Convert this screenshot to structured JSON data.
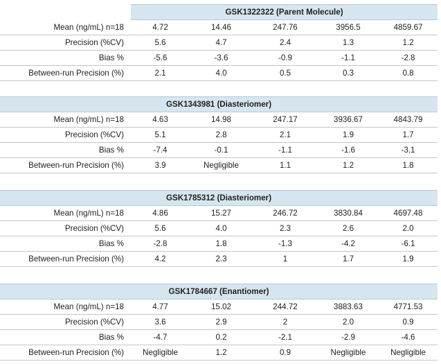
{
  "columns_labels": [
    "Mean (ng/mL) n=18",
    "Precision (%CV)",
    "Bias %",
    "Between-run Precision (%)"
  ],
  "sections": [
    {
      "title": "GSK1322322 (Parent Molecule)",
      "rows": [
        {
          "label": "Mean (ng/mL) n=18",
          "values": [
            "4.72",
            "14.46",
            "247.76",
            "3956.5",
            "4859.67"
          ]
        },
        {
          "label": "Precision (%CV)",
          "values": [
            "5.6",
            "4.7",
            "2.4",
            "1.3",
            "1.2"
          ]
        },
        {
          "label": "Bias %",
          "values": [
            "-5.6",
            "-3.6",
            "-0.9",
            "-1.1",
            "-2.8"
          ]
        },
        {
          "label": "Between-run Precision (%)",
          "values": [
            "2.1",
            "4.0",
            "0.5",
            "0.3",
            "0.8"
          ]
        }
      ]
    },
    {
      "title": "GSK1343981 (Diasteriomer)",
      "rows": [
        {
          "label": "Mean (ng/mL) n=18",
          "values": [
            "4.63",
            "14.98",
            "247.17",
            "3936.67",
            "4843.79"
          ]
        },
        {
          "label": "Precision (%CV)",
          "values": [
            "5.1",
            "2.8",
            "2.1",
            "1.9",
            "1.7"
          ]
        },
        {
          "label": "Bias %",
          "values": [
            "-7.4",
            "-0.1",
            "-1.1",
            "-1.6",
            "-3.1"
          ]
        },
        {
          "label": "Between-run Precision (%)",
          "values": [
            "3.9",
            "Negligible",
            "1.1",
            "1.2",
            "1.8"
          ]
        }
      ]
    },
    {
      "title": "GSK1785312 (Diasteriomer)",
      "rows": [
        {
          "label": "Mean (ng/mL) n=18",
          "values": [
            "4.86",
            "15.27",
            "246.72",
            "3830.84",
            "4697.48"
          ]
        },
        {
          "label": "Precision (%CV)",
          "values": [
            "5.6",
            "4.0",
            "2.3",
            "2.6",
            "2.0"
          ]
        },
        {
          "label": "Bias %",
          "values": [
            "-2.8",
            "1.8",
            "-1.3",
            "-4.2",
            "-6.1"
          ]
        },
        {
          "label": "Between-run Precision (%)",
          "values": [
            "4.2",
            "2.3",
            "1",
            "1.7",
            "1.9"
          ]
        }
      ]
    },
    {
      "title": "GSK1784667 (Enantiomer)",
      "rows": [
        {
          "label": "Mean (ng/mL) n=18",
          "values": [
            "4.77",
            "15.02",
            "244.72",
            "3883.63",
            "4771.53"
          ]
        },
        {
          "label": "Precision (%CV)",
          "values": [
            "3.6",
            "2.9",
            "2",
            "2.0",
            "0.9"
          ]
        },
        {
          "label": "Bias %",
          "values": [
            "-4.7",
            "0.2",
            "-2.1",
            "-2.9",
            "-4.6"
          ]
        },
        {
          "label": "Between-run Precision (%)",
          "values": [
            "Negligible",
            "1.2",
            "0.9",
            "Negligible",
            "Negligible"
          ]
        }
      ]
    }
  ]
}
